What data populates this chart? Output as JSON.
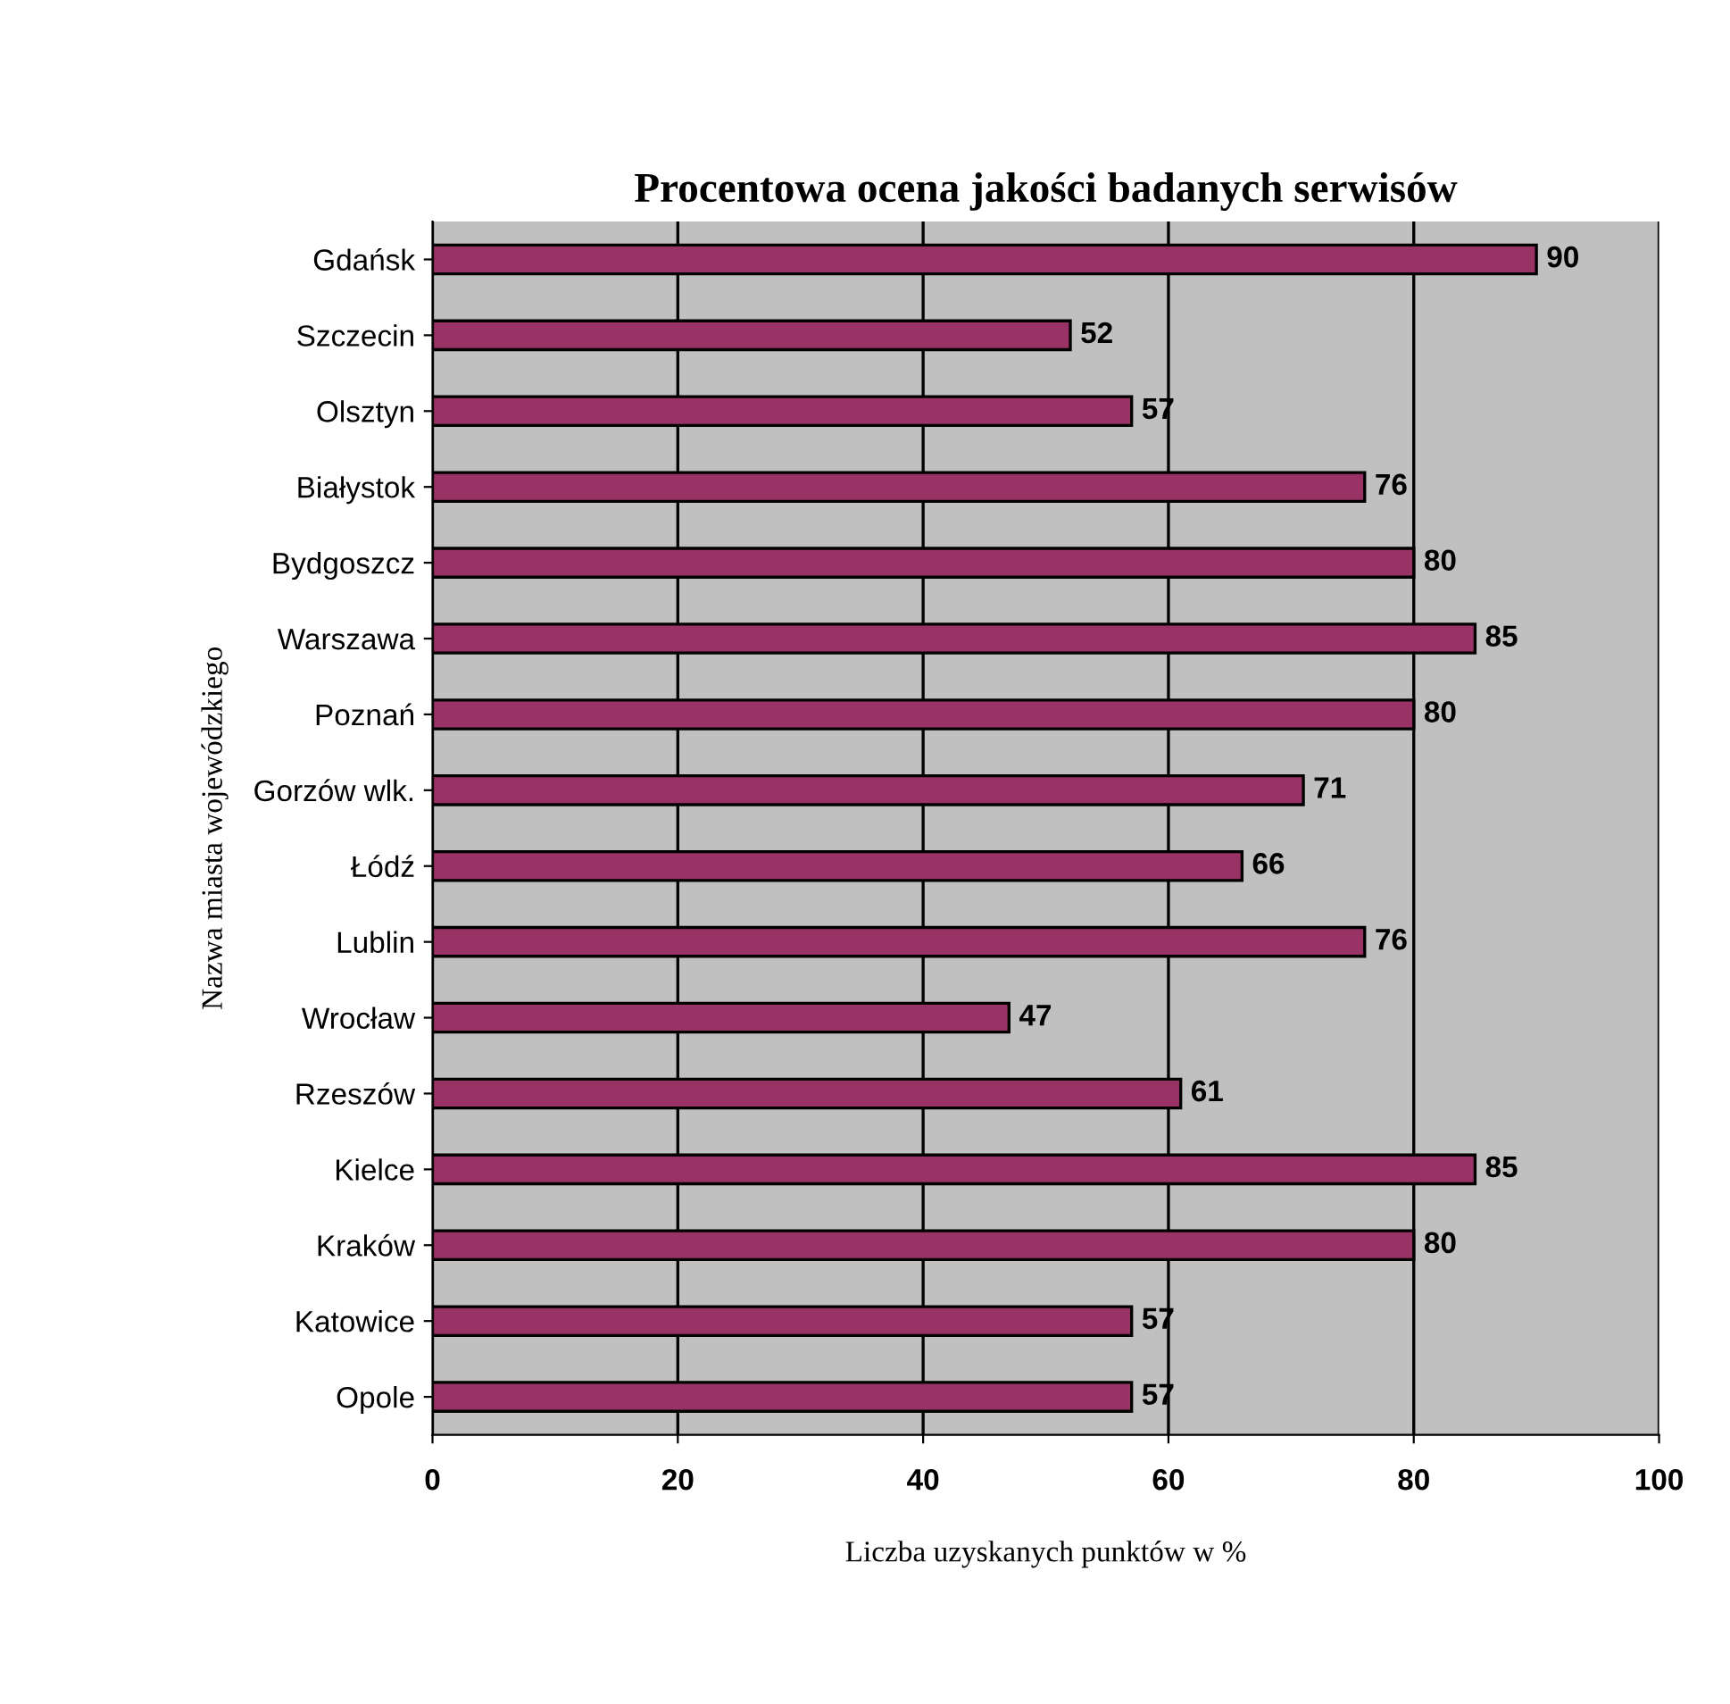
{
  "chart_data": {
    "type": "bar",
    "orientation": "horizontal",
    "title": "Procentowa ocena jakości badanych serwisów",
    "xlabel": "Liczba uzyskanych punktów w %",
    "ylabel": "Nazwa miasta wojewódzkiego",
    "categories": [
      "Gdańsk",
      "Szczecin",
      "Olsztyn",
      "Białystok",
      "Bydgoszcz",
      "Warszawa",
      "Poznań",
      "Gorzów wlk.",
      "Łódź",
      "Lublin",
      "Wrocław",
      "Rzeszów",
      "Kielce",
      "Kraków",
      "Katowice",
      "Opole"
    ],
    "values": [
      90,
      52,
      57,
      76,
      80,
      85,
      80,
      71,
      66,
      76,
      47,
      61,
      85,
      80,
      57,
      57
    ],
    "color": "#993366",
    "xlim": [
      0,
      100
    ],
    "xticks": [
      0,
      20,
      40,
      60,
      80,
      100
    ],
    "grid": "x",
    "data_labels": true
  }
}
